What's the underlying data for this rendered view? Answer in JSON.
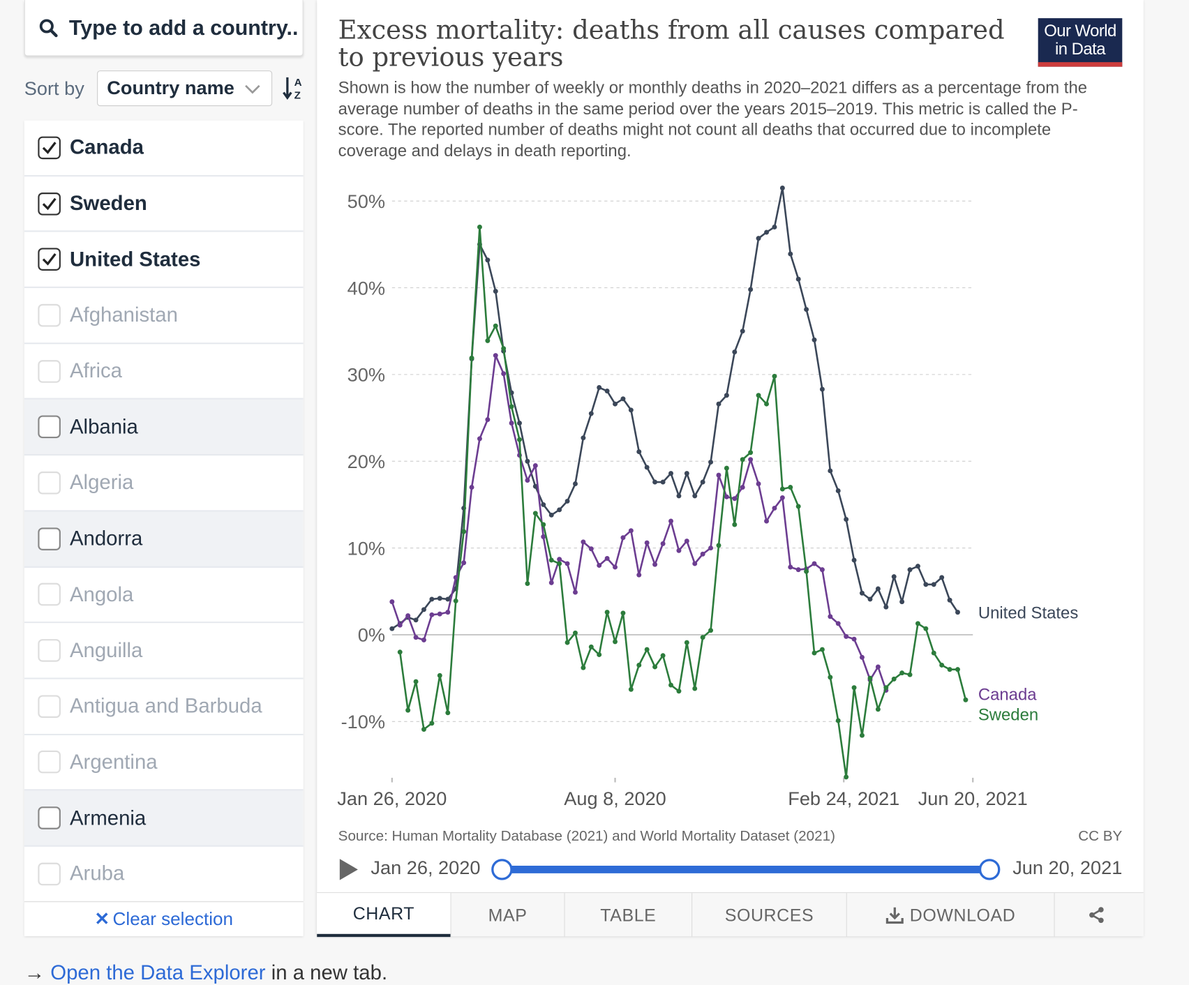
{
  "search": {
    "placeholder": "Type to add a country.."
  },
  "sort": {
    "label": "Sort by",
    "value": "Country name"
  },
  "countries": [
    {
      "name": "Canada",
      "state": "checked"
    },
    {
      "name": "Sweden",
      "state": "checked"
    },
    {
      "name": "United States",
      "state": "checked"
    },
    {
      "name": "Afghanistan",
      "state": "unavailable"
    },
    {
      "name": "Africa",
      "state": "unavailable"
    },
    {
      "name": "Albania",
      "state": "available"
    },
    {
      "name": "Algeria",
      "state": "unavailable"
    },
    {
      "name": "Andorra",
      "state": "available"
    },
    {
      "name": "Angola",
      "state": "unavailable"
    },
    {
      "name": "Anguilla",
      "state": "unavailable"
    },
    {
      "name": "Antigua and Barbuda",
      "state": "unavailable"
    },
    {
      "name": "Argentina",
      "state": "unavailable"
    },
    {
      "name": "Armenia",
      "state": "available"
    },
    {
      "name": "Aruba",
      "state": "unavailable"
    }
  ],
  "clear_selection": "Clear selection",
  "chart": {
    "title": "Excess mortality: deaths from all causes compared to previous years",
    "subtitle": "Shown is how the number of weekly or monthly deaths in 2020–2021 differs as a percentage from the average number of deaths in the same period over the years 2015–2019. This metric is called the P-score. The reported number of deaths might not count all deaths that occurred due to incomplete coverage and delays in death reporting.",
    "logo_line1": "Our World",
    "logo_line2": "in Data",
    "source": "Source: Human Mortality Database (2021) and World Mortality Dataset (2021)",
    "license": "CC BY"
  },
  "chart_data": {
    "type": "line",
    "title": "Excess mortality: deaths from all causes compared to previous years",
    "xlabel": "",
    "ylabel": "",
    "ylim": [
      -16.4,
      51.5
    ],
    "y_ticks": [
      -10,
      0,
      10,
      20,
      30,
      40,
      50
    ],
    "y_tick_labels": [
      "-10%",
      "0%",
      "10%",
      "20%",
      "30%",
      "40%",
      "50%"
    ],
    "x_tick_labels": [
      "Jan 26, 2020",
      "Aug 8, 2020",
      "Feb 24, 2021",
      "Jun 20, 2021"
    ],
    "x_tick_weeks": [
      0,
      28,
      56.7,
      72.9
    ],
    "x_unit": "weeks since Jan 26, 2020",
    "series": [
      {
        "name": "United States",
        "color": "#3b4759",
        "x_start": 0,
        "values": [
          0.7,
          1.3,
          2.0,
          1.7,
          2.9,
          4.1,
          4.2,
          4.1,
          5.3,
          14.6,
          31.8,
          45.0,
          43.2,
          39.6,
          32.7,
          27.9,
          24.4,
          20.0,
          17.1,
          15.0,
          13.8,
          14.4,
          15.4,
          17.4,
          22.7,
          25.5,
          28.5,
          28.1,
          26.6,
          27.2,
          25.9,
          21.1,
          19.3,
          17.6,
          17.6,
          18.6,
          16.0,
          18.6,
          16.0,
          17.6,
          19.9,
          26.6,
          27.6,
          32.6,
          35.0,
          39.8,
          45.7,
          46.4,
          47.0,
          51.5,
          43.9,
          41.0,
          37.5,
          34.0,
          28.3,
          18.9,
          16.6,
          13.3,
          8.6,
          4.8,
          4.1,
          5.3,
          3.2,
          6.7,
          3.8,
          7.5,
          7.9,
          5.8,
          5.8,
          6.6,
          4.0,
          2.6
        ]
      },
      {
        "name": "Canada",
        "color": "#6c3d91",
        "x_start": 0,
        "values": [
          3.8,
          1.1,
          2.2,
          -0.3,
          -0.6,
          2.3,
          2.4,
          2.6,
          6.6,
          8.3,
          17.0,
          22.6,
          24.8,
          32.2,
          30.1,
          24.4,
          20.7,
          17.8,
          19.5,
          11.3,
          6.0,
          8.7,
          8.2,
          4.9,
          10.7,
          9.9,
          8.0,
          8.8,
          7.8,
          11.2,
          12.0,
          6.9,
          10.6,
          8.1,
          10.5,
          13.1,
          9.7,
          10.8,
          8.2,
          9.3,
          10.0,
          18.4,
          15.9,
          15.7,
          17.0,
          20.2,
          17.4,
          13.1,
          14.6,
          15.8,
          7.8,
          7.5,
          7.6,
          8.2,
          7.5,
          2.1,
          1.3,
          -0.2,
          -0.5,
          -2.6,
          -5.2,
          -3.7,
          -6.4
        ]
      },
      {
        "name": "Sweden",
        "color": "#2c7c3c",
        "x_start": 1,
        "values": [
          -2.0,
          -8.7,
          -5.4,
          -10.9,
          -10.2,
          -4.7,
          -9.0,
          3.9,
          11.9,
          31.9,
          47.0,
          33.9,
          35.6,
          33.0,
          26.3,
          22.5,
          5.9,
          14.0,
          12.7,
          8.6,
          8.2,
          -0.9,
          0.2,
          -3.8,
          -1.4,
          -2.3,
          2.6,
          -0.8,
          2.5,
          -6.3,
          -3.5,
          -1.7,
          -3.7,
          -2.4,
          -5.8,
          -6.5,
          -0.9,
          -6.2,
          -0.3,
          0.5,
          10.3,
          19.2,
          12.7,
          20.2,
          21.0,
          27.6,
          26.6,
          29.8,
          16.8,
          17.0,
          14.8,
          7.3,
          -2.1,
          -1.7,
          -4.9,
          -9.9,
          -16.4,
          -6.1,
          -11.6,
          -5.0,
          -8.6,
          -6.1,
          -5.1,
          -4.4,
          -4.6,
          1.3,
          0.7,
          -2.1,
          -3.5,
          -4.0,
          -4.0,
          -7.5
        ]
      }
    ]
  },
  "timeline": {
    "start": "Jan 26, 2020",
    "end": "Jun 20, 2021",
    "start_fraction": 0,
    "end_fraction": 1
  },
  "tabs": [
    "CHART",
    "MAP",
    "TABLE",
    "SOURCES",
    "DOWNLOAD"
  ],
  "explorer": {
    "arrow": "→",
    "link": "Open the Data Explorer",
    "suffix": "in a new tab."
  }
}
